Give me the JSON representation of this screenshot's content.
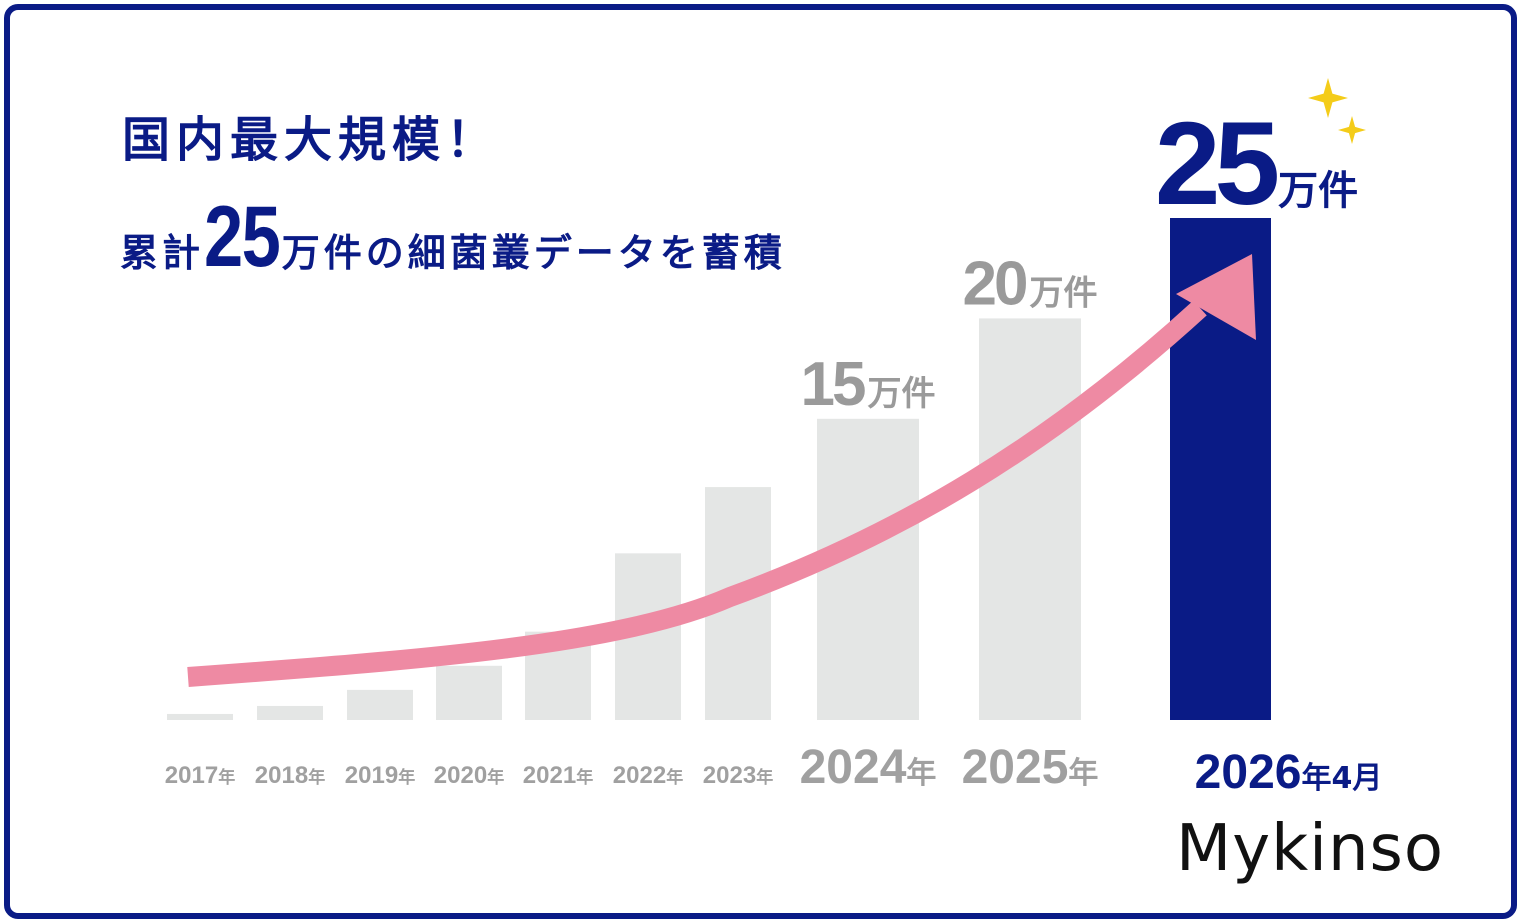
{
  "headline": "国内最大規模！",
  "subline": {
    "prefix": "累計",
    "number": "25",
    "suffix": "万件の細菌叢データを蓄積"
  },
  "brand": "Mykinso",
  "colors": {
    "border": "#0a1b86",
    "highlight_bar": "#0a1b86",
    "bar": "#e4e6e5",
    "value_label": "#9a9a9a",
    "year_label": "#a0a0a0",
    "arrow": "#ee8aa3",
    "sparkle": "#f4cc19"
  },
  "sparkle_icon": "sparkle-icon",
  "chart_data": {
    "type": "bar",
    "categories": [
      "2017",
      "2018",
      "2019",
      "2020",
      "2021",
      "2022",
      "2023",
      "2024",
      "2025",
      "2026"
    ],
    "category_labels": [
      {
        "num": "2017",
        "unit": "年"
      },
      {
        "num": "2018",
        "unit": "年"
      },
      {
        "num": "2019",
        "unit": "年"
      },
      {
        "num": "2020",
        "unit": "年"
      },
      {
        "num": "2021",
        "unit": "年"
      },
      {
        "num": "2022",
        "unit": "年"
      },
      {
        "num": "2023",
        "unit": "年"
      },
      {
        "num": "2024",
        "unit": "年"
      },
      {
        "num": "2025",
        "unit": "年"
      },
      {
        "num": "2026",
        "unit": "年4月"
      }
    ],
    "values": [
      0.3,
      0.7,
      1.5,
      2.7,
      4.4,
      8.3,
      11.6,
      15,
      20,
      25
    ],
    "unit": "万件",
    "ylim": [
      0,
      25
    ],
    "highlight_index": 9,
    "data_labels": [
      {
        "index": 7,
        "num": "15",
        "unit": "万件"
      },
      {
        "index": 8,
        "num": "20",
        "unit": "万件"
      },
      {
        "index": 9,
        "num": "25",
        "unit": "万件"
      }
    ],
    "trend_arrow": true,
    "grid": false,
    "legend": "none"
  }
}
